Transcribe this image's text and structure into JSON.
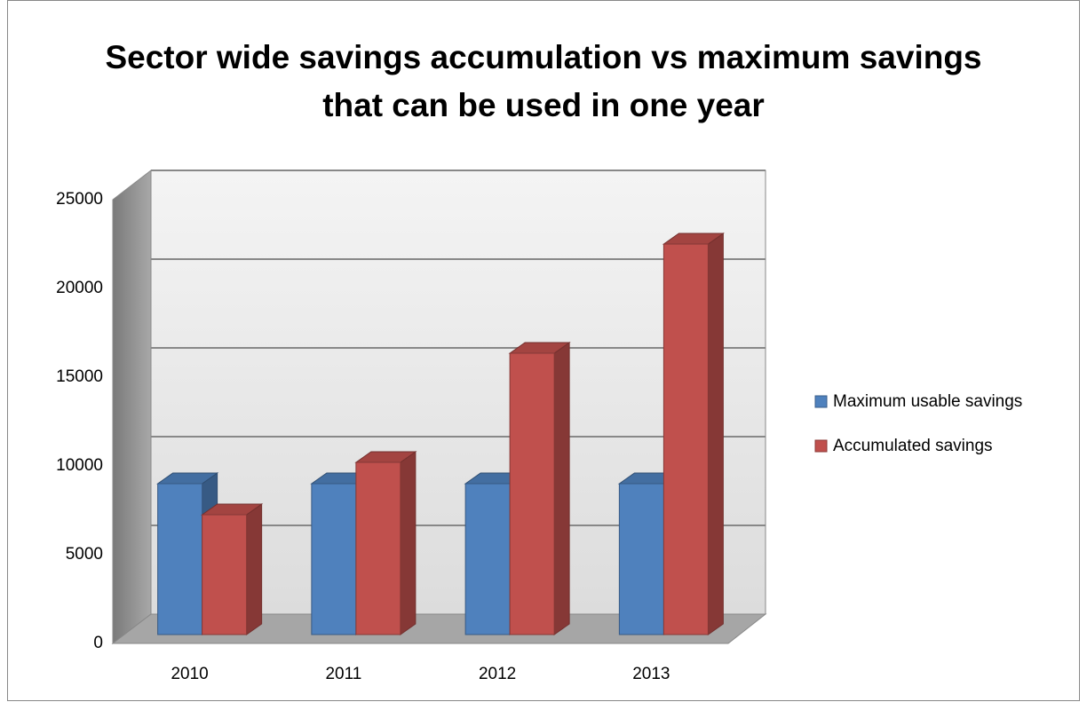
{
  "chart_data": {
    "type": "bar3d",
    "title": "Sector wide savings accumulation vs maximum savings that can be used in one year",
    "categories": [
      "2010",
      "2011",
      "2012",
      "2013"
    ],
    "series": [
      {
        "name": "Maximum usable savings",
        "color": "#4f81bd",
        "values": [
          8500,
          8500,
          8500,
          8500
        ]
      },
      {
        "name": "Accumulated savings",
        "color": "#c0504d",
        "values": [
          6750,
          9700,
          15850,
          22000
        ]
      }
    ],
    "ylim": [
      0,
      25000
    ],
    "yticks": [
      0,
      5000,
      10000,
      15000,
      20000,
      25000
    ],
    "grid": true,
    "legend": "right"
  }
}
